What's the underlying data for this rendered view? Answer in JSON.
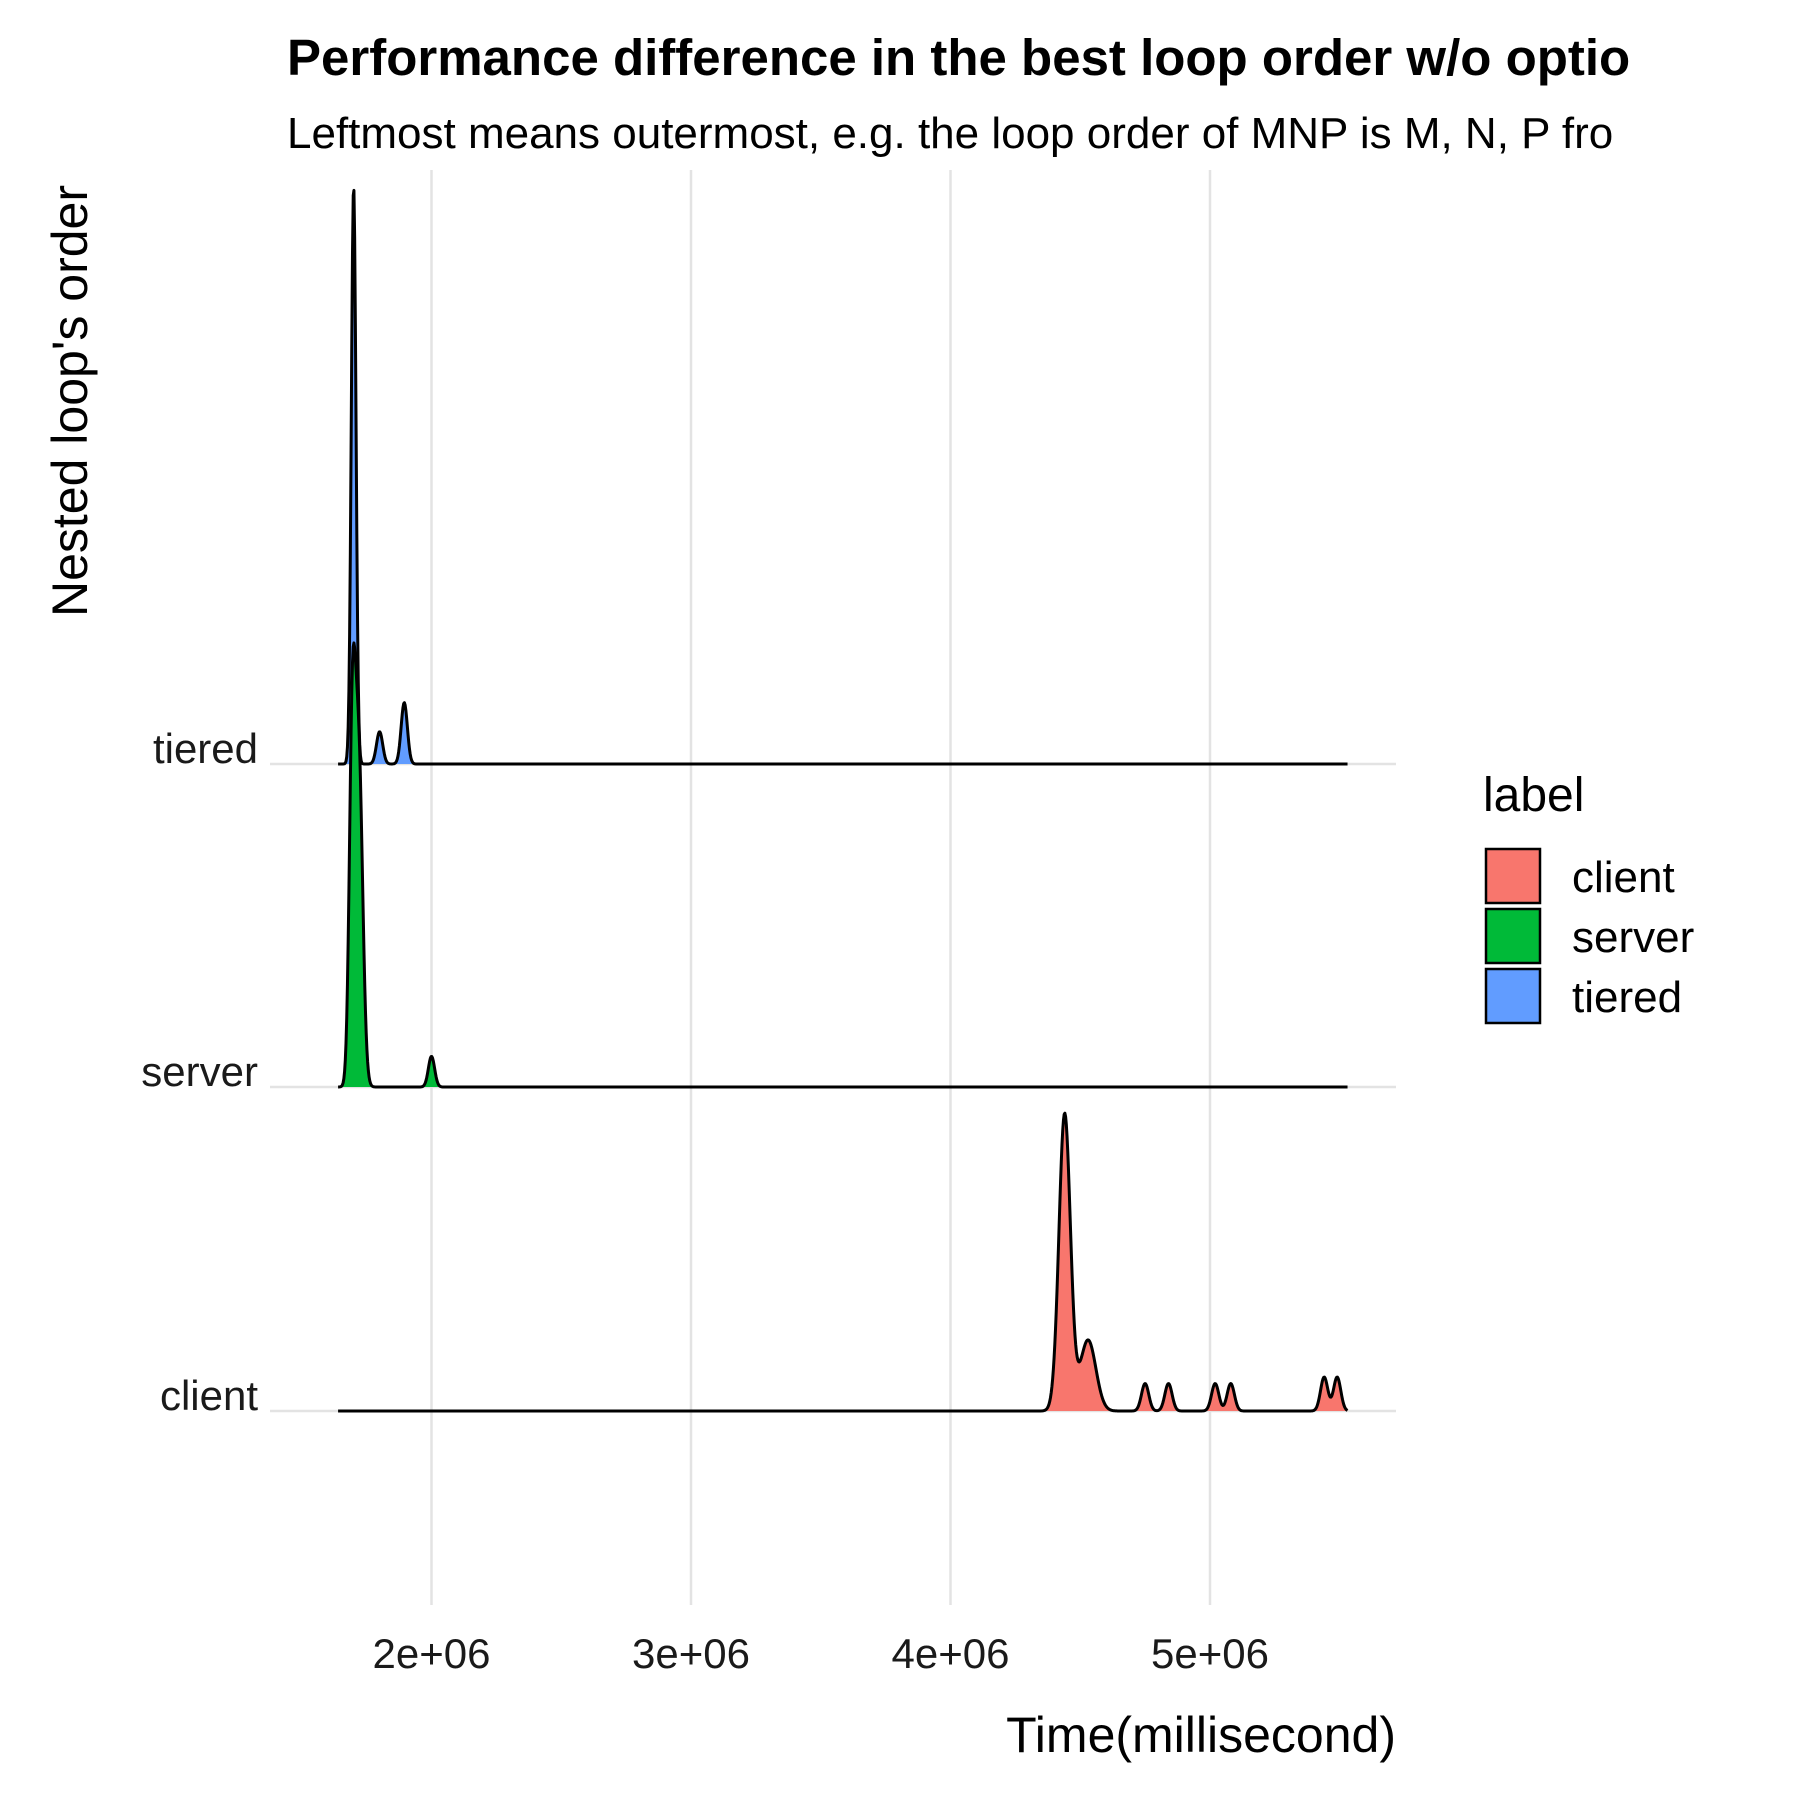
{
  "chart_data": {
    "type": "area",
    "title": "Performance difference in the best loop order w/o optio",
    "subtitle": "Leftmost means outermost, e.g. the loop order of MNP is M, N, P fro",
    "xlabel": "Time(millisecond)",
    "ylabel": "Nested loop's order",
    "x_range": [
      1610000,
      5560000
    ],
    "x_ticks": [
      {
        "value": 2000000,
        "label": "2e+06"
      },
      {
        "value": 3000000,
        "label": "3e+06"
      },
      {
        "value": 4000000,
        "label": "4e+06"
      },
      {
        "value": 5000000,
        "label": "5e+06"
      }
    ],
    "categories": [
      "client",
      "server",
      "tiered"
    ],
    "grid": true,
    "legend": {
      "title": "label",
      "position": "right"
    },
    "series": [
      {
        "name": "client",
        "color": "#F8766D",
        "range": [
          1640000,
          5530000
        ],
        "peaks": [
          {
            "x": 4440000,
            "sd": 22000,
            "h": 0.92
          },
          {
            "x": 4530000,
            "sd": 30000,
            "h": 0.22
          },
          {
            "x": 4750000,
            "sd": 14000,
            "h": 0.085
          },
          {
            "x": 4840000,
            "sd": 14000,
            "h": 0.085
          },
          {
            "x": 5020000,
            "sd": 14000,
            "h": 0.085
          },
          {
            "x": 5080000,
            "sd": 14000,
            "h": 0.085
          },
          {
            "x": 5440000,
            "sd": 14000,
            "h": 0.105
          },
          {
            "x": 5490000,
            "sd": 14000,
            "h": 0.105
          }
        ]
      },
      {
        "name": "server",
        "color": "#00BA38",
        "range": [
          1640000,
          5530000
        ],
        "peaks": [
          {
            "x": 1695000,
            "sd": 12000,
            "h": 1.05
          },
          {
            "x": 1720000,
            "sd": 15000,
            "h": 1.0
          },
          {
            "x": 2000000,
            "sd": 12000,
            "h": 0.095
          }
        ]
      },
      {
        "name": "tiered",
        "color": "#619CFF",
        "range": [
          1640000,
          5530000
        ],
        "peaks": [
          {
            "x": 1700000,
            "sd": 9000,
            "h": 1.79
          },
          {
            "x": 1800000,
            "sd": 12000,
            "h": 0.1
          },
          {
            "x": 1895000,
            "sd": 12000,
            "h": 0.19
          }
        ]
      }
    ]
  }
}
